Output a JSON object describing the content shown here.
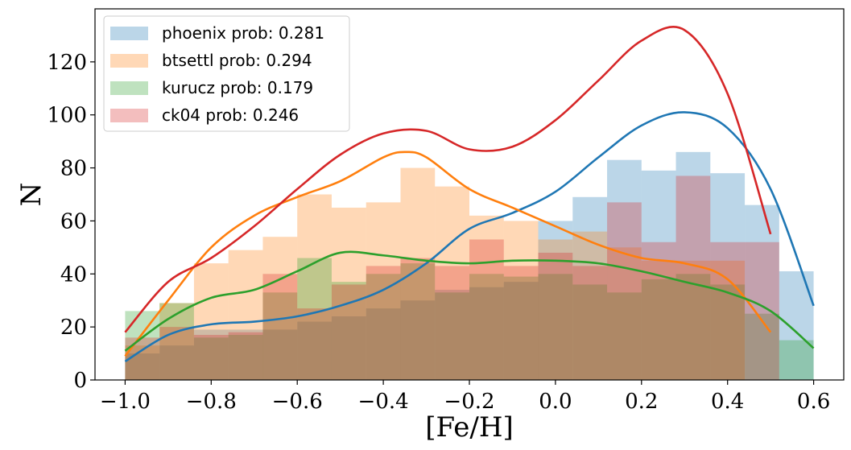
{
  "chart_data": {
    "type": "bar",
    "xlabel": "[Fe/H]",
    "ylabel": "N",
    "xlim": [
      -1.07,
      0.67
    ],
    "ylim": [
      0,
      140
    ],
    "xticks": [
      -1.0,
      -0.8,
      -0.6,
      -0.4,
      -0.2,
      0.0,
      0.2,
      0.4,
      0.6
    ],
    "xtick_labels": [
      "−1.0",
      "−0.8",
      "−0.6",
      "−0.4",
      "−0.2",
      "0.0",
      "0.2",
      "0.4",
      "0.6"
    ],
    "yticks": [
      0,
      20,
      40,
      60,
      80,
      100,
      120
    ],
    "ytick_labels": [
      "0",
      "20",
      "40",
      "60",
      "80",
      "100",
      "120"
    ],
    "legend_position": "top-left",
    "bin_edges": [
      -1.0,
      -0.92,
      -0.84,
      -0.76,
      -0.68,
      -0.6,
      -0.52,
      -0.44,
      -0.36,
      -0.28,
      -0.2,
      -0.12,
      -0.04,
      0.04,
      0.12,
      0.2,
      0.28,
      0.36,
      0.44,
      0.52,
      0.6
    ],
    "histogram_alpha": 0.3,
    "series": [
      {
        "name": "phoenix prob: 0.281",
        "color": "#1f77b4",
        "hist_values": [
          10,
          13,
          19,
          19,
          19,
          22,
          24,
          27,
          30,
          34,
          35,
          37,
          60,
          69,
          83,
          79,
          86,
          78,
          66,
          41
        ],
        "kde_x": [
          -1.0,
          -0.9,
          -0.8,
          -0.7,
          -0.6,
          -0.5,
          -0.4,
          -0.3,
          -0.2,
          -0.1,
          0.0,
          0.1,
          0.2,
          0.3,
          0.4,
          0.5,
          0.6
        ],
        "kde_y": [
          7,
          17,
          21,
          22,
          24,
          28,
          34,
          44,
          57,
          63,
          71,
          84,
          96,
          101,
          95,
          72,
          28
        ]
      },
      {
        "name": "btsettl prob: 0.294",
        "color": "#ff7f0e",
        "hist_values": [
          13,
          29,
          44,
          49,
          54,
          70,
          65,
          67,
          80,
          73,
          62,
          60,
          53,
          56,
          50,
          45,
          45,
          45,
          0,
          0
        ],
        "kde_x": [
          -1.0,
          -0.9,
          -0.8,
          -0.7,
          -0.6,
          -0.5,
          -0.4,
          -0.35,
          -0.3,
          -0.2,
          -0.1,
          0.0,
          0.1,
          0.2,
          0.3,
          0.4,
          0.5
        ],
        "kde_y": [
          9,
          30,
          50,
          62,
          69,
          75,
          84,
          86,
          84,
          72,
          65,
          58,
          51,
          46,
          44,
          38,
          18
        ]
      },
      {
        "name": "kurucz prob: 0.179",
        "color": "#2ca02c",
        "hist_values": [
          26,
          29,
          16,
          17,
          33,
          46,
          37,
          40,
          44,
          33,
          40,
          39,
          40,
          36,
          33,
          38,
          40,
          36,
          25,
          15
        ],
        "kde_x": [
          -1.0,
          -0.9,
          -0.8,
          -0.7,
          -0.6,
          -0.5,
          -0.4,
          -0.3,
          -0.2,
          -0.1,
          0.0,
          0.1,
          0.2,
          0.3,
          0.4,
          0.5,
          0.6
        ],
        "kde_y": [
          11,
          23,
          31,
          34,
          41,
          48,
          47,
          45,
          44,
          45,
          45,
          44,
          41,
          37,
          33,
          26,
          12
        ]
      },
      {
        "name": "ck04 prob: 0.246",
        "color": "#d62728",
        "hist_values": [
          16,
          20,
          17,
          18,
          40,
          27,
          36,
          43,
          46,
          43,
          53,
          43,
          48,
          43,
          67,
          52,
          77,
          52,
          52,
          0
        ],
        "kde_x": [
          -1.0,
          -0.9,
          -0.8,
          -0.7,
          -0.6,
          -0.5,
          -0.4,
          -0.3,
          -0.2,
          -0.1,
          0.0,
          0.1,
          0.2,
          0.3,
          0.4,
          0.5
        ],
        "kde_y": [
          18,
          37,
          46,
          58,
          72,
          85,
          93,
          94,
          87,
          88,
          98,
          113,
          128,
          132,
          108,
          55
        ]
      }
    ]
  }
}
